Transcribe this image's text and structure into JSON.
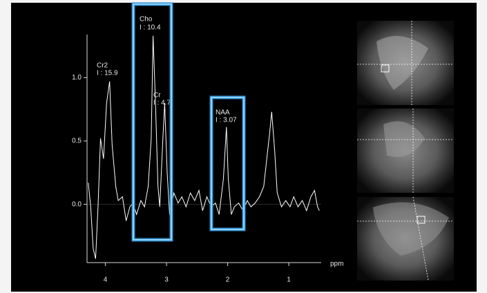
{
  "chart_data": {
    "type": "line",
    "x": [
      4.28,
      4.24,
      4.2,
      4.16,
      4.12,
      4.08,
      4.03,
      3.98,
      3.93,
      3.89,
      3.83,
      3.79,
      3.72,
      3.66,
      3.6,
      3.55,
      3.49,
      3.42,
      3.36,
      3.3,
      3.25,
      3.22,
      3.18,
      3.14,
      3.11,
      3.06,
      3.03,
      2.99,
      2.95,
      2.88,
      2.81,
      2.75,
      2.68,
      2.61,
      2.54,
      2.47,
      2.41,
      2.34,
      2.27,
      2.2,
      2.14,
      2.07,
      2.02,
      1.99,
      1.94,
      1.89,
      1.82,
      1.75,
      1.68,
      1.62,
      1.55,
      1.48,
      1.41,
      1.36,
      1.31,
      1.28,
      1.23,
      1.19,
      1.12,
      1.05,
      0.98,
      0.92,
      0.85,
      0.78,
      0.71,
      0.64,
      0.58,
      0.53,
      0.5
    ],
    "values": [
      0.17,
      -0.02,
      -0.35,
      -0.43,
      -0.02,
      0.52,
      0.36,
      0.8,
      0.97,
      0.47,
      0.14,
      0.03,
      0.06,
      -0.13,
      -0.02,
      0.01,
      -0.08,
      0.03,
      -0.02,
      0.14,
      0.52,
      1.33,
      0.8,
      0.14,
      -0.02,
      0.52,
      0.8,
      0.25,
      -0.08,
      0.09,
      0.01,
      0.06,
      -0.02,
      0.09,
      0.03,
      0.11,
      -0.05,
      0.06,
      -0.02,
      0.01,
      -0.08,
      0.2,
      0.61,
      0.2,
      -0.08,
      -0.02,
      0.01,
      -0.05,
      0.03,
      -0.02,
      0.01,
      0.06,
      0.14,
      0.36,
      0.58,
      0.73,
      0.42,
      0.09,
      -0.02,
      0.03,
      -0.02,
      0.06,
      -0.02,
      0.03,
      -0.05,
      0.06,
      0.11,
      -0.02,
      -0.05
    ],
    "color": "#ffffff",
    "x_label": "ppm",
    "xlim": [
      4.3,
      0.47
    ],
    "xticks": [
      4,
      3,
      2,
      1
    ],
    "ylim": [
      -0.46,
      1.34
    ],
    "yticks": [
      {
        "value": 0,
        "label": "0.0"
      },
      0.5,
      {
        "value": 1,
        "label": "1.0"
      }
    ],
    "annotations": [
      "Cr2",
      "I : 15.9",
      "Cho",
      "I : 10.4",
      "Cr",
      "I : 4.7",
      "NAA",
      "I : 3.07"
    ]
  }
}
